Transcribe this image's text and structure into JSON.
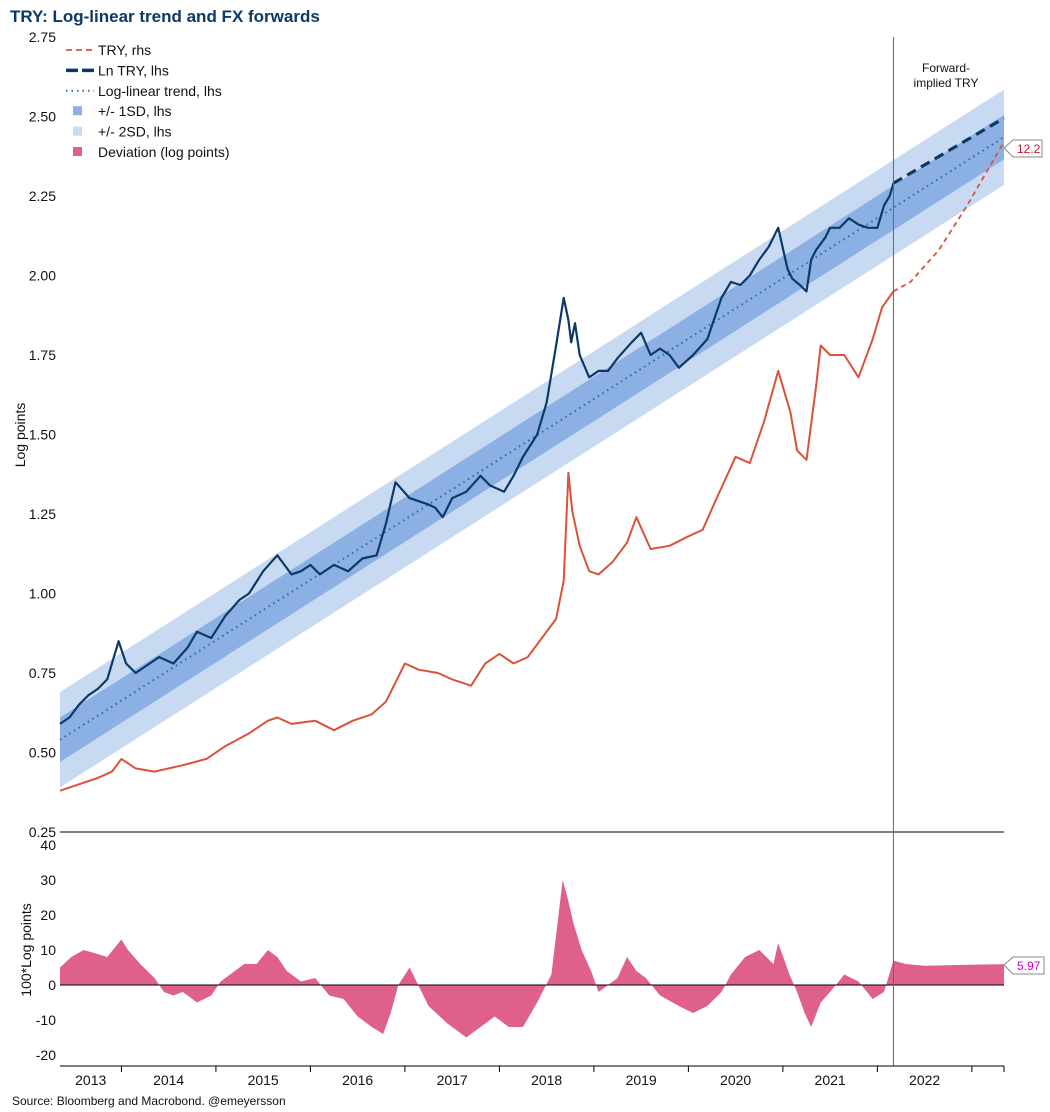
{
  "title": "TRY: Log-linear trend and FX forwards",
  "source": "Source: Bloomberg and Macrobond. @emeyersson",
  "colors": {
    "try": "#d9533a",
    "ln_try": "#0b3a66",
    "trend": "#1f6fb2",
    "sd1": "#8cb0e3",
    "sd2": "#c8daf2",
    "deviation": "#e0608c",
    "forward_value_label": "#c0182f",
    "deviation_value_label": "#cc00cc"
  },
  "chart_data": [
    {
      "type": "line",
      "title": "TRY: Log-linear trend and FX forwards",
      "ylabel": "Log points",
      "ylim": [
        0.25,
        2.75
      ],
      "yticks": [
        "0.25",
        "0.50",
        "0.75",
        "1.00",
        "1.25",
        "1.50",
        "1.75",
        "2.00",
        "2.25",
        "2.50",
        "2.75"
      ],
      "xlim": [
        2013.0,
        2022.99
      ],
      "forward_start": 2021.82,
      "annotation": "Forward-\nimplied TRY",
      "forward_value_label": "12.2",
      "trend": {
        "start": [
          2013.0,
          0.54
        ],
        "end": [
          2022.99,
          2.435
        ],
        "sd1": 0.07,
        "sd2": 0.15
      },
      "series": [
        {
          "name": "Ln TRY, lhs",
          "style": "solid",
          "x": [
            2013.0,
            2013.1,
            2013.2,
            2013.3,
            2013.4,
            2013.5,
            2013.62,
            2013.7,
            2013.8,
            2013.9,
            2014.05,
            2014.2,
            2014.35,
            2014.45,
            2014.6,
            2014.75,
            2014.9,
            2015.0,
            2015.15,
            2015.3,
            2015.45,
            2015.55,
            2015.65,
            2015.75,
            2015.9,
            2016.05,
            2016.2,
            2016.35,
            2016.45,
            2016.55,
            2016.7,
            2016.8,
            2016.9,
            2016.97,
            2017.05,
            2017.15,
            2017.3,
            2017.45,
            2017.55,
            2017.7,
            2017.8,
            2017.9,
            2018.05,
            2018.15,
            2018.25,
            2018.33,
            2018.38,
            2018.41,
            2018.45,
            2018.5,
            2018.6,
            2018.7,
            2018.8,
            2018.9,
            2019.05,
            2019.15,
            2019.25,
            2019.35,
            2019.45,
            2019.55,
            2019.7,
            2019.85,
            2020.0,
            2020.1,
            2020.2,
            2020.3,
            2020.4,
            2020.5,
            2020.6,
            2020.7,
            2020.75,
            2020.83,
            2020.9,
            2020.95,
            2021.0,
            2021.1,
            2021.15,
            2021.25,
            2021.35,
            2021.45,
            2021.55,
            2021.65,
            2021.72,
            2021.78,
            2021.82
          ],
          "values": [
            0.59,
            0.61,
            0.65,
            0.68,
            0.7,
            0.73,
            0.85,
            0.78,
            0.75,
            0.77,
            0.8,
            0.78,
            0.83,
            0.88,
            0.86,
            0.93,
            0.98,
            1.0,
            1.07,
            1.12,
            1.06,
            1.07,
            1.09,
            1.06,
            1.09,
            1.07,
            1.11,
            1.12,
            1.22,
            1.35,
            1.3,
            1.29,
            1.28,
            1.27,
            1.24,
            1.3,
            1.32,
            1.37,
            1.34,
            1.32,
            1.37,
            1.43,
            1.5,
            1.6,
            1.78,
            1.93,
            1.86,
            1.79,
            1.85,
            1.75,
            1.68,
            1.7,
            1.7,
            1.74,
            1.79,
            1.82,
            1.75,
            1.77,
            1.75,
            1.71,
            1.75,
            1.8,
            1.93,
            1.98,
            1.97,
            2.0,
            2.05,
            2.09,
            2.15,
            2.02,
            1.99,
            1.97,
            1.95,
            2.05,
            2.08,
            2.12,
            2.15,
            2.15,
            2.18,
            2.16,
            2.15,
            2.15,
            2.22,
            2.25,
            2.29
          ]
        },
        {
          "name": "Ln TRY forward, lhs",
          "style": "dashed",
          "x": [
            2021.82,
            2022.99
          ],
          "values": [
            2.29,
            2.495
          ]
        },
        {
          "name": "TRY, rhs",
          "style": "solid",
          "x": [
            2013.0,
            2013.2,
            2013.4,
            2013.55,
            2013.65,
            2013.8,
            2014.0,
            2014.3,
            2014.55,
            2014.75,
            2015.0,
            2015.2,
            2015.3,
            2015.45,
            2015.7,
            2015.9,
            2016.1,
            2016.3,
            2016.45,
            2016.55,
            2016.65,
            2016.8,
            2017.0,
            2017.15,
            2017.35,
            2017.5,
            2017.65,
            2017.8,
            2017.95,
            2018.1,
            2018.25,
            2018.33,
            2018.38,
            2018.42,
            2018.5,
            2018.6,
            2018.7,
            2018.85,
            2019.0,
            2019.1,
            2019.25,
            2019.45,
            2019.65,
            2019.8,
            2019.95,
            2020.15,
            2020.3,
            2020.45,
            2020.6,
            2020.73,
            2020.8,
            2020.9,
            2021.0,
            2021.05,
            2021.15,
            2021.3,
            2021.45,
            2021.6,
            2021.7,
            2021.82
          ],
          "values": [
            0.38,
            0.4,
            0.42,
            0.44,
            0.48,
            0.45,
            0.44,
            0.46,
            0.48,
            0.52,
            0.56,
            0.6,
            0.61,
            0.59,
            0.6,
            0.57,
            0.6,
            0.62,
            0.66,
            0.72,
            0.78,
            0.76,
            0.75,
            0.73,
            0.71,
            0.78,
            0.81,
            0.78,
            0.8,
            0.86,
            0.92,
            1.04,
            1.38,
            1.26,
            1.15,
            1.07,
            1.06,
            1.1,
            1.16,
            1.24,
            1.14,
            1.15,
            1.18,
            1.2,
            1.3,
            1.43,
            1.41,
            1.54,
            1.7,
            1.57,
            1.45,
            1.42,
            1.65,
            1.78,
            1.75,
            1.75,
            1.68,
            1.8,
            1.9,
            1.95
          ]
        },
        {
          "name": "TRY forward, rhs",
          "style": "dashed",
          "x": [
            2021.82,
            2022.0,
            2022.3,
            2022.6,
            2022.99
          ],
          "values": [
            1.95,
            1.98,
            2.08,
            2.22,
            2.42
          ]
        }
      ]
    },
    {
      "type": "area",
      "ylabel": "100*Log points",
      "ylim": [
        -22,
        42
      ],
      "yticks": [
        "-20",
        "-10",
        "0",
        "10",
        "20",
        "30",
        "40"
      ],
      "xlim": [
        2013.0,
        2022.99
      ],
      "value_label": "5.97",
      "series": [
        {
          "name": "Deviation (log points)",
          "x": [
            2013.0,
            2013.12,
            2013.25,
            2013.38,
            2013.5,
            2013.65,
            2013.72,
            2013.85,
            2014.0,
            2014.1,
            2014.2,
            2014.3,
            2014.45,
            2014.6,
            2014.7,
            2014.85,
            2014.95,
            2015.08,
            2015.2,
            2015.3,
            2015.4,
            2015.55,
            2015.7,
            2015.85,
            2016.0,
            2016.15,
            2016.3,
            2016.42,
            2016.5,
            2016.58,
            2016.7,
            2016.9,
            2017.1,
            2017.3,
            2017.45,
            2017.6,
            2017.75,
            2017.9,
            2018.05,
            2018.2,
            2018.32,
            2018.38,
            2018.43,
            2018.52,
            2018.62,
            2018.7,
            2018.8,
            2018.9,
            2019.0,
            2019.1,
            2019.2,
            2019.35,
            2019.55,
            2019.7,
            2019.85,
            2020.0,
            2020.1,
            2020.25,
            2020.4,
            2020.55,
            2020.6,
            2020.72,
            2020.8,
            2020.88,
            2020.95,
            2021.05,
            2021.15,
            2021.3,
            2021.45,
            2021.6,
            2021.72,
            2021.82,
            2021.95,
            2022.15,
            2022.5,
            2022.99
          ],
          "values": [
            5,
            8,
            10,
            9,
            8,
            13,
            10,
            6,
            2,
            -2,
            -3,
            -2,
            -5,
            -3,
            1,
            4,
            6,
            6,
            10,
            8,
            4,
            1,
            2,
            -3,
            -4,
            -9,
            -12,
            -14,
            -8,
            0,
            5,
            -6,
            -11,
            -15,
            -12,
            -9,
            -12,
            -12,
            -5,
            3,
            30,
            24,
            18,
            10,
            4,
            -2,
            0,
            2,
            8,
            4,
            2,
            -3,
            -6,
            -8,
            -6,
            -2,
            3,
            8,
            10,
            6,
            12,
            3,
            -2,
            -8,
            -12,
            -5,
            -2,
            3,
            1,
            -4,
            -2,
            7,
            6,
            5.5,
            5.7,
            5.97
          ]
        }
      ]
    }
  ],
  "legend": [
    {
      "label": "TRY, rhs",
      "style": "dashed",
      "color": "#d9533a"
    },
    {
      "label": "Ln TRY, lhs",
      "style": "dashed-thick",
      "color": "#0b3a66"
    },
    {
      "label": "Log-linear trend, lhs",
      "style": "dotted",
      "color": "#1f6fb2"
    },
    {
      "label": "+/- 1SD, lhs",
      "style": "square",
      "color": "#8cb0e3"
    },
    {
      "label": "+/- 2SD, lhs",
      "style": "square",
      "color": "#c8daf2"
    },
    {
      "label": "Deviation (log points)",
      "style": "square",
      "color": "#e0608c"
    }
  ],
  "x_years": [
    "2013",
    "2014",
    "2015",
    "2016",
    "2017",
    "2018",
    "2019",
    "2020",
    "2021",
    "2022"
  ]
}
